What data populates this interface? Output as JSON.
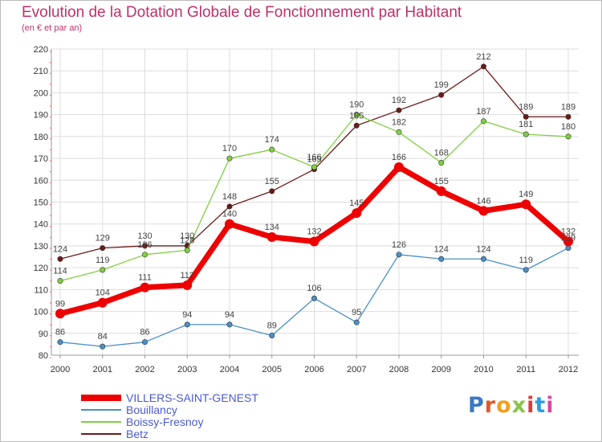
{
  "title": "Evolution de la Dotation Globale de Fonctionnement par Habitant",
  "subtitle": "(en € et par an)",
  "logo": {
    "text": "Proxiti",
    "letter_colors": [
      "#3a78c2",
      "#e0592a",
      "#f0a020",
      "#8bc34a",
      "#e03a3a",
      "#2e9ee0",
      "#d84aa0"
    ]
  },
  "chart_data": {
    "type": "line",
    "x": [
      2000,
      2001,
      2002,
      2003,
      2004,
      2005,
      2006,
      2007,
      2008,
      2009,
      2010,
      2011,
      2012
    ],
    "ylim": [
      80,
      220
    ],
    "yticks": [
      80,
      90,
      100,
      110,
      120,
      130,
      140,
      150,
      160,
      170,
      180,
      190,
      200,
      210,
      220
    ],
    "grid": true,
    "legend_position": "bottom-left",
    "series": [
      {
        "name": "VILLERS-SAINT-GENEST",
        "color": "#ee0000",
        "values": [
          99,
          104,
          111,
          112,
          140,
          134,
          132,
          145,
          166,
          155,
          146,
          149,
          132
        ]
      },
      {
        "name": "Bouillancy",
        "color": "#4a90c8",
        "values": [
          86,
          84,
          86,
          94,
          94,
          89,
          106,
          95,
          126,
          124,
          124,
          119,
          129
        ]
      },
      {
        "name": "Boissy-Fresnoy",
        "color": "#80d040",
        "values": [
          114,
          119,
          126,
          128,
          170,
          174,
          166,
          190,
          182,
          168,
          187,
          181,
          180
        ]
      },
      {
        "name": "Betz",
        "color": "#6b1a1a",
        "values": [
          124,
          129,
          130,
          130,
          148,
          155,
          165,
          185,
          192,
          199,
          212,
          189,
          189
        ]
      }
    ]
  }
}
